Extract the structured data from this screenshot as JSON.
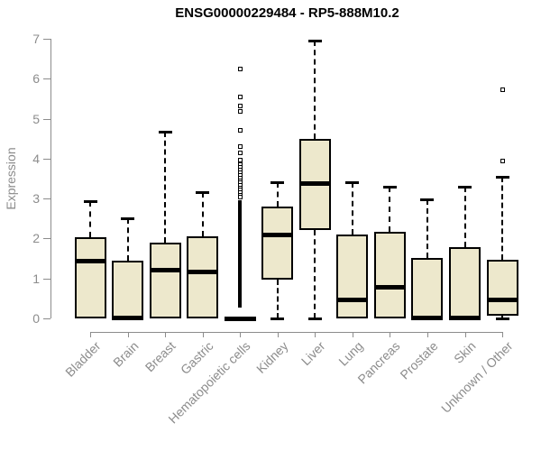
{
  "title": "ENSG00000229484 - RP5-888M10.2",
  "colors": {
    "box_fill": "#EDE8CC",
    "box_border": "#000000",
    "median": "#000000",
    "axis": "#8C8C8C",
    "title_text": "#000000",
    "background": "#FFFFFF"
  },
  "chart_data": {
    "type": "boxplot",
    "title": "ENSG00000229484 - RP5-888M10.2",
    "xlabel": "",
    "ylabel": "Expression",
    "ylim": [
      0,
      7
    ],
    "yticks": [
      0,
      1,
      2,
      3,
      4,
      5,
      6,
      7
    ],
    "grid": false,
    "legend": false,
    "categories": [
      "Bladder",
      "Brain",
      "Breast",
      "Gastric",
      "Hematopoietic cells",
      "Kidney",
      "Liver",
      "Lung",
      "Pancreas",
      "Prostate",
      "Skin",
      "Unknown / Other"
    ],
    "series": [
      {
        "name": "Bladder",
        "whisker_low": 0,
        "q1": 0,
        "median": 1.45,
        "q3": 2.03,
        "whisker_high": 2.94,
        "outliers": []
      },
      {
        "name": "Brain",
        "whisker_low": 0,
        "q1": 0,
        "median": 0.03,
        "q3": 1.45,
        "whisker_high": 2.51,
        "outliers": []
      },
      {
        "name": "Breast",
        "whisker_low": 0,
        "q1": 0,
        "median": 1.22,
        "q3": 1.9,
        "whisker_high": 4.67,
        "outliers": []
      },
      {
        "name": "Gastric",
        "whisker_low": 0,
        "q1": 0,
        "median": 1.17,
        "q3": 2.06,
        "whisker_high": 3.16,
        "outliers": []
      },
      {
        "name": "Hematopoietic cells",
        "whisker_low": 0,
        "q1": 0,
        "median": 0.01,
        "q3": 0.03,
        "whisker_high": 0.03,
        "outliers": [
          6.25,
          5.55,
          5.32,
          5.18,
          4.7,
          4.3,
          4.15,
          3.97,
          3.85,
          3.79,
          3.72,
          3.65,
          3.58,
          3.51,
          3.45,
          3.39,
          3.33,
          3.27,
          3.21,
          3.15,
          3.09,
          3.03
        ],
        "outlier_dense_range": [
          0.28,
          2.96
        ]
      },
      {
        "name": "Kidney",
        "whisker_low": 0,
        "q1": 0.97,
        "median": 2.1,
        "q3": 2.8,
        "whisker_high": 3.4,
        "outliers": []
      },
      {
        "name": "Liver",
        "whisker_low": 0,
        "q1": 2.21,
        "median": 3.38,
        "q3": 4.5,
        "whisker_high": 6.95,
        "outliers": []
      },
      {
        "name": "Lung",
        "whisker_low": 0,
        "q1": 0,
        "median": 0.48,
        "q3": 2.1,
        "whisker_high": 3.4,
        "outliers": []
      },
      {
        "name": "Pancreas",
        "whisker_low": 0,
        "q1": 0,
        "median": 0.79,
        "q3": 2.17,
        "whisker_high": 3.29,
        "outliers": []
      },
      {
        "name": "Prostate",
        "whisker_low": 0,
        "q1": 0,
        "median": 0.03,
        "q3": 1.51,
        "whisker_high": 2.98,
        "outliers": []
      },
      {
        "name": "Skin",
        "whisker_low": 0,
        "q1": 0,
        "median": 0.03,
        "q3": 1.78,
        "whisker_high": 3.29,
        "outliers": []
      },
      {
        "name": "Unknown / Other",
        "whisker_low": 0,
        "q1": 0.08,
        "median": 0.48,
        "q3": 1.47,
        "whisker_high": 3.54,
        "outliers": [
          5.73,
          3.95
        ]
      }
    ]
  }
}
